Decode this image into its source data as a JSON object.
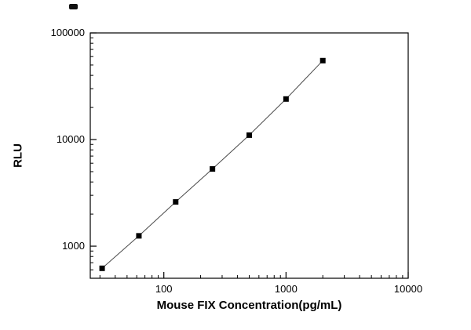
{
  "chart_data": {
    "type": "line",
    "x": [
      31.25,
      62.5,
      125,
      250,
      500,
      1000,
      2000
    ],
    "y": [
      620,
      1250,
      2600,
      5300,
      11000,
      24000,
      55000
    ],
    "title": "",
    "xlabel": "Mouse FIX Concentration(pg/mL)",
    "ylabel": "RLU",
    "xscale": "log",
    "yscale": "log",
    "xlim": [
      25,
      10000
    ],
    "ylim": [
      500,
      100000
    ],
    "x_ticks": [
      100,
      1000,
      10000
    ],
    "y_ticks": [
      1000,
      10000,
      100000
    ],
    "grid": false,
    "legend": "none",
    "marker": "filled-square",
    "marker_color": "#000000",
    "line_color": "#4a4a4a",
    "frame_color": "#000000",
    "background": "#ffffff"
  }
}
